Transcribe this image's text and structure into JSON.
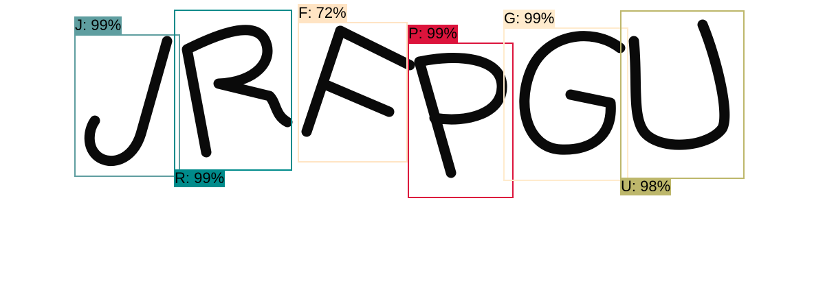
{
  "detections": [
    {
      "letter": "J",
      "label": "J: 99%",
      "color": "#5f9ea0",
      "text_color": "#000000"
    },
    {
      "letter": "R",
      "label": "R: 99%",
      "color": "#008b8b",
      "text_color": "#000000"
    },
    {
      "letter": "F",
      "label": "F: 72%",
      "color": "#ffe4c4",
      "text_color": "#000000"
    },
    {
      "letter": "P",
      "label": "P: 99%",
      "color": "#dc143c",
      "text_color": "#000000"
    },
    {
      "letter": "G",
      "label": "G: 99%",
      "color": "#ffebcd",
      "text_color": "#000000"
    },
    {
      "letter": "U",
      "label": "U: 98%",
      "color": "#bdb76b",
      "text_color": "#000000"
    }
  ]
}
